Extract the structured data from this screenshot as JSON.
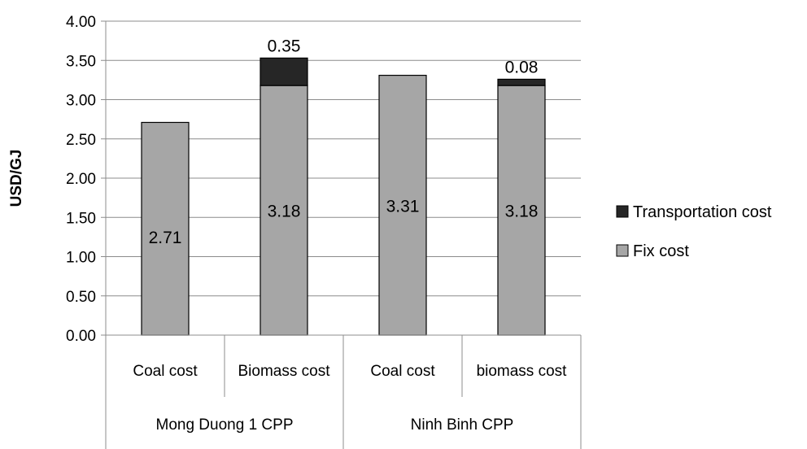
{
  "chart_data": {
    "type": "bar",
    "stacked": true,
    "categories": [
      "Coal cost",
      "Biomass cost",
      "Coal cost",
      "biomass cost"
    ],
    "groups": [
      {
        "label": "Mong Duong 1 CPP",
        "categories": [
          "Coal cost",
          "Biomass cost"
        ]
      },
      {
        "label": "Ninh Binh CPP",
        "categories": [
          "Coal cost",
          "biomass cost"
        ]
      }
    ],
    "series": [
      {
        "name": "Fix cost",
        "values": [
          2.71,
          3.18,
          3.31,
          3.18
        ],
        "color": "#a6a6a6",
        "labels": [
          "2.71",
          "3.18",
          "3.31",
          "3.18"
        ]
      },
      {
        "name": "Transportation cost",
        "values": [
          0,
          0.35,
          0,
          0.08
        ],
        "color": "#262626",
        "labels": [
          "",
          "0.35",
          "",
          "0.08"
        ]
      }
    ],
    "ylabel": "USD/GJ",
    "ylim": [
      0,
      4
    ],
    "yticks": [
      "0.00",
      "0.50",
      "1.00",
      "1.50",
      "2.00",
      "2.50",
      "3.00",
      "3.50",
      "4.00"
    ],
    "grid": true,
    "legend_position": "right"
  }
}
